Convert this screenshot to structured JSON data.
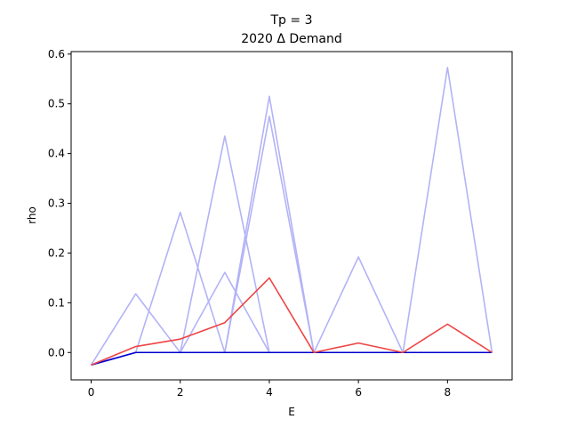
{
  "chart_data": {
    "type": "line",
    "title": "Tp = 3",
    "subtitle": "2020 Δ Demand",
    "xlabel": "E",
    "ylabel": "rho",
    "xlim": [
      -0.45,
      9.45
    ],
    "ylim": [
      -0.055,
      0.605
    ],
    "xticks": [
      0,
      2,
      4,
      6,
      8
    ],
    "yticks": [
      0.0,
      0.1,
      0.2,
      0.3,
      0.4,
      0.5,
      0.6
    ],
    "ytick_labels": [
      "0.0",
      "0.1",
      "0.2",
      "0.3",
      "0.4",
      "0.5",
      "0.6"
    ],
    "grid": false,
    "x": [
      0,
      1,
      2,
      3,
      4,
      5,
      6,
      7,
      8,
      9
    ],
    "series": [
      {
        "color": "#b3b3f7",
        "values": [
          -0.025,
          0.118,
          0.0,
          0.435,
          0.0,
          0.0,
          0.0,
          0.0,
          0.0,
          0.0
        ]
      },
      {
        "color": "#b3b3f7",
        "values": [
          -0.025,
          0.0,
          0.282,
          0.0,
          0.0,
          0.0,
          0.0,
          0.0,
          0.0,
          0.0
        ]
      },
      {
        "color": "#b3b3f7",
        "values": [
          -0.025,
          0.0,
          0.0,
          0.161,
          0.0,
          0.0,
          0.192,
          0.0,
          0.0,
          0.0
        ]
      },
      {
        "color": "#b3b3f7",
        "values": [
          -0.025,
          0.0,
          0.0,
          0.0,
          0.515,
          0.0,
          0.0,
          0.0,
          0.0,
          0.0
        ]
      },
      {
        "color": "#b3b3f7",
        "values": [
          -0.025,
          0.0,
          0.0,
          0.0,
          0.475,
          0.0,
          0.0,
          0.0,
          0.0,
          0.0
        ]
      },
      {
        "color": "#b3b3f7",
        "values": [
          -0.025,
          0.0,
          0.0,
          0.0,
          0.0,
          0.0,
          0.0,
          0.0,
          0.573,
          0.0
        ]
      },
      {
        "color": "#0000cc",
        "values": [
          -0.025,
          0.0,
          0.0,
          0.0,
          0.0,
          0.0,
          0.0,
          0.0,
          0.0,
          0.0
        ]
      },
      {
        "color": "#ee4444",
        "values": [
          -0.025,
          0.012,
          0.027,
          0.06,
          0.15,
          0.0,
          0.019,
          0.0,
          0.057,
          0.0
        ]
      }
    ]
  }
}
